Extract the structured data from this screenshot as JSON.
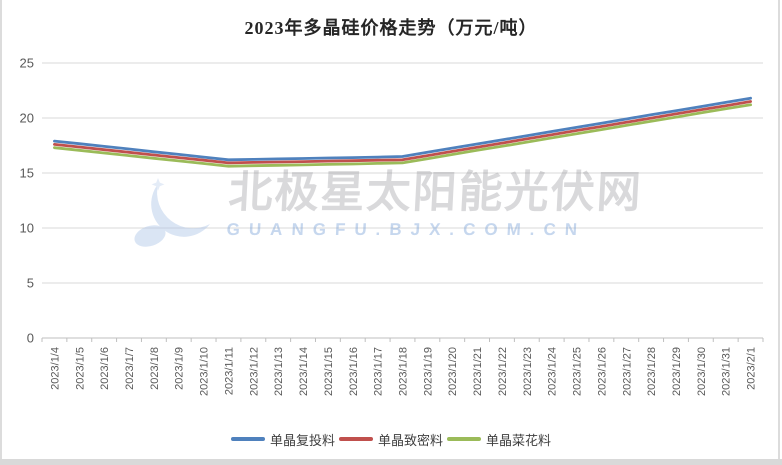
{
  "page": {
    "title": "2023年多晶硅价格走势（万元/吨）"
  },
  "watermark": {
    "text": "北极星太阳能光伏网",
    "subtext": "GUANGFU.BJX.COM.CN",
    "logo_icon": "bjx-crescent-star"
  },
  "colors": {
    "series_blue": "#4F81BD",
    "series_red": "#C0504D",
    "series_green": "#9BBB59",
    "gridline": "#d9d9d9",
    "axis_line": "#bfbfbf",
    "tick_label": "#595959",
    "title_text": "#262626"
  },
  "chart_data": {
    "type": "line",
    "title": "2023年多晶硅价格走势（万元/吨）",
    "xlabel": "",
    "ylabel": "",
    "ylim": [
      0,
      25
    ],
    "yticks": [
      0,
      5,
      10,
      15,
      20,
      25
    ],
    "grid": true,
    "legend_position": "bottom",
    "categories": [
      "2023/1/4",
      "2023/1/5",
      "2023/1/6",
      "2023/1/7",
      "2023/1/8",
      "2023/1/9",
      "2023/1/10",
      "2023/1/11",
      "2023/1/12",
      "2023/1/13",
      "2023/1/14",
      "2023/1/15",
      "2023/1/16",
      "2023/1/17",
      "2023/1/18",
      "2023/1/19",
      "2023/1/20",
      "2023/1/21",
      "2023/1/22",
      "2023/1/23",
      "2023/1/24",
      "2023/1/25",
      "2023/1/26",
      "2023/1/27",
      "2023/1/28",
      "2023/1/29",
      "2023/1/30",
      "2023/1/31",
      "2023/2/1"
    ],
    "series": [
      {
        "name": "单晶复投料",
        "color": "#4F81BD",
        "values": [
          17.9,
          17.66,
          17.42,
          17.18,
          16.93,
          16.69,
          16.45,
          16.2,
          16.24,
          16.28,
          16.32,
          16.36,
          16.4,
          16.45,
          16.5,
          16.88,
          17.26,
          17.64,
          18.01,
          18.39,
          18.77,
          19.15,
          19.53,
          19.91,
          20.29,
          20.66,
          21.04,
          21.42,
          21.8
        ]
      },
      {
        "name": "单晶致密料",
        "color": "#C0504D",
        "values": [
          17.6,
          17.36,
          17.12,
          16.88,
          16.64,
          16.4,
          16.16,
          15.92,
          15.96,
          16.0,
          16.04,
          16.08,
          16.12,
          16.16,
          16.2,
          16.58,
          16.96,
          17.34,
          17.72,
          18.1,
          18.48,
          18.86,
          19.23,
          19.61,
          19.99,
          20.37,
          20.75,
          21.12,
          21.5
        ]
      },
      {
        "name": "单晶菜花料",
        "color": "#9BBB59",
        "values": [
          17.3,
          17.06,
          16.82,
          16.58,
          16.34,
          16.1,
          15.86,
          15.62,
          15.66,
          15.7,
          15.74,
          15.78,
          15.82,
          15.87,
          15.92,
          16.3,
          16.68,
          17.06,
          17.43,
          17.81,
          18.19,
          18.57,
          18.95,
          19.33,
          19.71,
          20.08,
          20.46,
          20.84,
          21.2
        ]
      }
    ]
  }
}
